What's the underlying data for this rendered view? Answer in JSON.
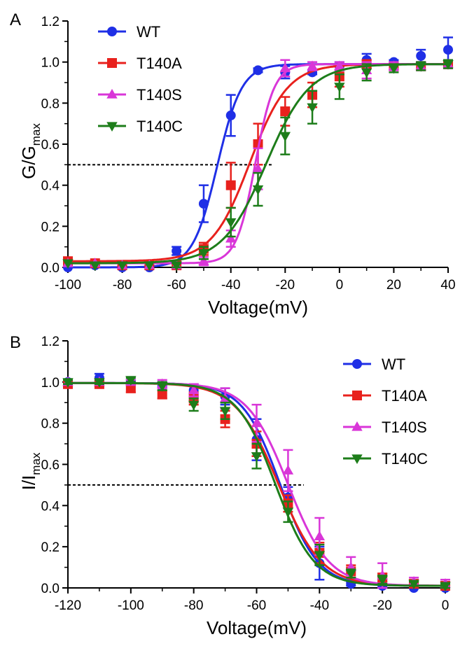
{
  "figure": {
    "panel_labels": [
      "A",
      "B"
    ]
  },
  "chart_data": [
    {
      "panel": "A",
      "type": "line",
      "xlabel": "Voltage(mV)",
      "ylabel_main": "G/G",
      "ylabel_sub": "max",
      "xlim": [
        -100,
        40
      ],
      "ylim": [
        0,
        1.2
      ],
      "xticks": [
        -100,
        -80,
        -60,
        -40,
        -20,
        0,
        20,
        40
      ],
      "yticks": [
        0.0,
        0.2,
        0.4,
        0.6,
        0.8,
        1.0,
        1.2
      ],
      "ytick_labels": [
        "0.0",
        "0.2",
        "0.4",
        "0.6",
        "0.8",
        "1.0",
        "1.2"
      ],
      "legend_position": "top-left",
      "reference_line": {
        "y": 0.5,
        "x_from": -100,
        "x_to": -25,
        "style": "dashed"
      },
      "series": [
        {
          "name": "WT",
          "color": "#1f2fe6",
          "marker": "circle",
          "x": [
            -100,
            -90,
            -80,
            -70,
            -60,
            -50,
            -40,
            -30,
            -20,
            -10,
            0,
            10,
            20,
            30,
            40
          ],
          "y": [
            0.0,
            0.01,
            0.0,
            0.0,
            0.08,
            0.31,
            0.74,
            0.96,
            0.95,
            0.95,
            0.98,
            1.01,
            1.0,
            1.03,
            1.06
          ],
          "err": [
            0,
            0,
            0,
            0,
            0.02,
            0.09,
            0.1,
            0.01,
            0.03,
            0.01,
            0.02,
            0.03,
            0.01,
            0.03,
            0.06
          ],
          "fit": {
            "v_half": -45,
            "slope": 4.5
          }
        },
        {
          "name": "T140A",
          "color": "#e8211d",
          "marker": "square",
          "x": [
            -100,
            -90,
            -80,
            -70,
            -60,
            -50,
            -40,
            -30,
            -20,
            -10,
            0,
            10,
            20,
            30,
            40
          ],
          "y": [
            0.03,
            0.02,
            0.01,
            0.01,
            0.01,
            0.09,
            0.4,
            0.6,
            0.76,
            0.84,
            0.93,
            0.99,
            0.98,
            0.98,
            0.99
          ],
          "err": [
            0,
            0,
            0,
            0,
            0.01,
            0.03,
            0.11,
            0.1,
            0.07,
            0.06,
            0.05,
            0.02,
            0.02,
            0.02,
            0.02
          ],
          "fit": {
            "v_half": -33,
            "slope": 7
          }
        },
        {
          "name": "T140S",
          "color": "#d936d8",
          "marker": "triangle-up",
          "x": [
            -100,
            -90,
            -80,
            -70,
            -60,
            -50,
            -40,
            -30,
            -20,
            -10,
            0,
            10,
            20,
            30,
            40
          ],
          "y": [
            0.02,
            0.02,
            0.01,
            0.01,
            0.01,
            0.03,
            0.14,
            0.48,
            0.97,
            0.98,
            0.98,
            0.96,
            0.98,
            0.98,
            0.99
          ],
          "err": [
            0,
            0,
            0,
            0,
            0.01,
            0.02,
            0.04,
            0.1,
            0.04,
            0.02,
            0.02,
            0.04,
            0.02,
            0.02,
            0.02
          ],
          "fit": {
            "v_half": -31,
            "slope": 3.5
          }
        },
        {
          "name": "T140C",
          "color": "#1d7d1a",
          "marker": "triangle-down",
          "x": [
            -100,
            -90,
            -80,
            -70,
            -60,
            -50,
            -40,
            -30,
            -20,
            -10,
            0,
            10,
            20,
            30,
            40
          ],
          "y": [
            0.02,
            0.01,
            0.01,
            0.01,
            0.01,
            0.07,
            0.22,
            0.38,
            0.64,
            0.78,
            0.88,
            0.95,
            0.97,
            0.98,
            0.99
          ],
          "err": [
            0,
            0,
            0,
            0,
            0.01,
            0.03,
            0.07,
            0.08,
            0.09,
            0.08,
            0.06,
            0.04,
            0.02,
            0.02,
            0.02
          ],
          "fit": {
            "v_half": -27,
            "slope": 8
          }
        }
      ]
    },
    {
      "panel": "B",
      "type": "line",
      "xlabel": "Voltage(mV)",
      "ylabel_main": "I/I",
      "ylabel_sub": "max",
      "xlim": [
        -120,
        0
      ],
      "ylim": [
        0,
        1.2
      ],
      "xticks": [
        -120,
        -100,
        -80,
        -60,
        -40,
        -20,
        0
      ],
      "yticks": [
        0.0,
        0.2,
        0.4,
        0.6,
        0.8,
        1.0,
        1.2
      ],
      "ytick_labels": [
        "0.0",
        "0.2",
        "0.4",
        "0.6",
        "0.8",
        "1.0",
        "1.2"
      ],
      "legend_position": "top-right",
      "reference_line": {
        "y": 0.5,
        "x_from": -120,
        "x_to": -45,
        "style": "dashed"
      },
      "series": [
        {
          "name": "WT",
          "color": "#1f2fe6",
          "marker": "circle",
          "x": [
            -120,
            -110,
            -100,
            -90,
            -80,
            -70,
            -60,
            -50,
            -40,
            -30,
            -20,
            -10,
            0
          ],
          "y": [
            1.0,
            1.02,
            1.0,
            0.98,
            0.96,
            0.93,
            0.72,
            0.44,
            0.12,
            0.02,
            0.01,
            0.0,
            0.0
          ],
          "err": [
            0.01,
            0.02,
            0.01,
            0.02,
            0.03,
            0.04,
            0.1,
            0.05,
            0.08,
            0.01,
            0.01,
            0.0,
            0.0
          ],
          "fit": {
            "v_half": -52.5,
            "slope": 6.0
          }
        },
        {
          "name": "T140A",
          "color": "#e8211d",
          "marker": "square",
          "x": [
            -120,
            -110,
            -100,
            -90,
            -80,
            -70,
            -60,
            -50,
            -40,
            -30,
            -20,
            -10,
            0
          ],
          "y": [
            0.99,
            0.99,
            0.97,
            0.94,
            0.92,
            0.82,
            0.7,
            0.41,
            0.17,
            0.08,
            0.05,
            0.02,
            0.01
          ],
          "err": [
            0.01,
            0.01,
            0.02,
            0.02,
            0.03,
            0.04,
            0.06,
            0.04,
            0.05,
            0.03,
            0.02,
            0.01,
            0.01
          ],
          "fit": {
            "v_half": -53,
            "slope": 6.8
          }
        },
        {
          "name": "T140S",
          "color": "#d936d8",
          "marker": "triangle-up",
          "x": [
            -120,
            -110,
            -100,
            -90,
            -80,
            -70,
            -60,
            -50,
            -40,
            -30,
            -20,
            -10,
            0
          ],
          "y": [
            1.0,
            1.0,
            1.0,
            0.99,
            0.96,
            0.92,
            0.8,
            0.57,
            0.25,
            0.1,
            0.06,
            0.03,
            0.02
          ],
          "err": [
            0.01,
            0.01,
            0.01,
            0.02,
            0.03,
            0.05,
            0.09,
            0.1,
            0.09,
            0.05,
            0.06,
            0.02,
            0.02
          ],
          "fit": {
            "v_half": -50,
            "slope": 6.5
          }
        },
        {
          "name": "T140C",
          "color": "#1d7d1a",
          "marker": "triangle-down",
          "x": [
            -120,
            -110,
            -100,
            -90,
            -80,
            -70,
            -60,
            -50,
            -40,
            -30,
            -20,
            -10,
            0
          ],
          "y": [
            1.0,
            1.0,
            1.01,
            0.98,
            0.89,
            0.86,
            0.64,
            0.37,
            0.16,
            0.07,
            0.04,
            0.02,
            0.01
          ],
          "err": [
            0.01,
            0.01,
            0.01,
            0.02,
            0.03,
            0.04,
            0.06,
            0.05,
            0.05,
            0.02,
            0.02,
            0.01,
            0.01
          ],
          "fit": {
            "v_half": -54,
            "slope": 6.2
          }
        }
      ]
    }
  ]
}
